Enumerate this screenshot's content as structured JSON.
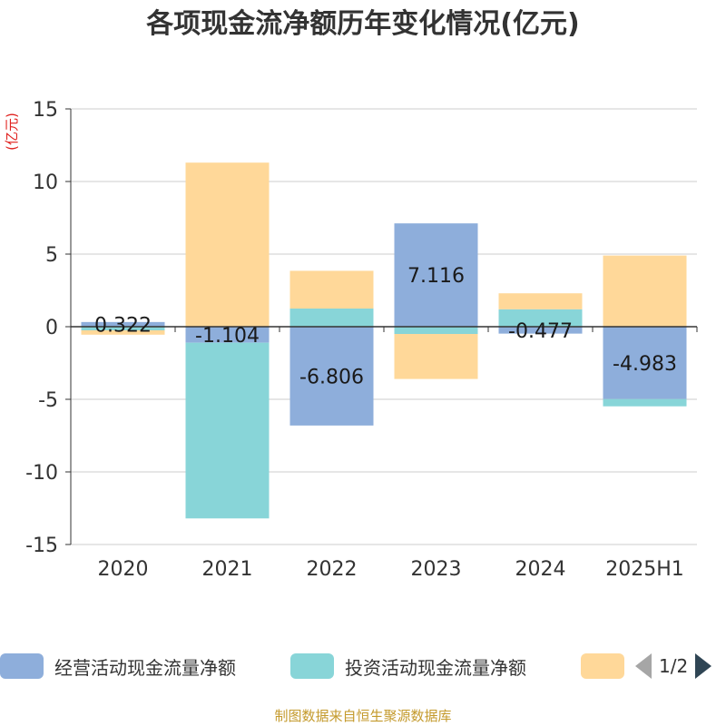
{
  "chart_data": {
    "type": "bar",
    "stacked": true,
    "title": "各项现金流净额历年变化情况(亿元)",
    "ylabel": "(亿元)",
    "categories": [
      "2020",
      "2021",
      "2022",
      "2023",
      "2024",
      "2025H1"
    ],
    "ylim": [
      -15,
      15
    ],
    "yticks": [
      15,
      10,
      5,
      0,
      -5,
      -10,
      -15
    ],
    "grid": true,
    "series": [
      {
        "name": "经营活动现金流量净额",
        "color": "#8eaedb",
        "values": [
          0.322,
          -1.104,
          -6.806,
          7.116,
          -0.477,
          -4.983
        ],
        "labels": [
          "0.322",
          "-1.104",
          "-6.806",
          "7.116",
          "-0.477",
          "-4.983"
        ]
      },
      {
        "name": "投资活动现金流量净额",
        "color": "#88d5d8",
        "values": [
          -0.25,
          -12.1,
          1.25,
          -0.5,
          1.2,
          -0.5
        ]
      },
      {
        "name": "",
        "color": "#ffd899",
        "values": [
          -0.3,
          11.3,
          2.6,
          -3.1,
          1.1,
          4.9
        ]
      }
    ]
  },
  "legend": {
    "item1": "经营活动现金流量净额",
    "item2": "投资活动现金流量净额",
    "pager": "1/2"
  },
  "source": "制图数据来自恒生聚源数据库"
}
